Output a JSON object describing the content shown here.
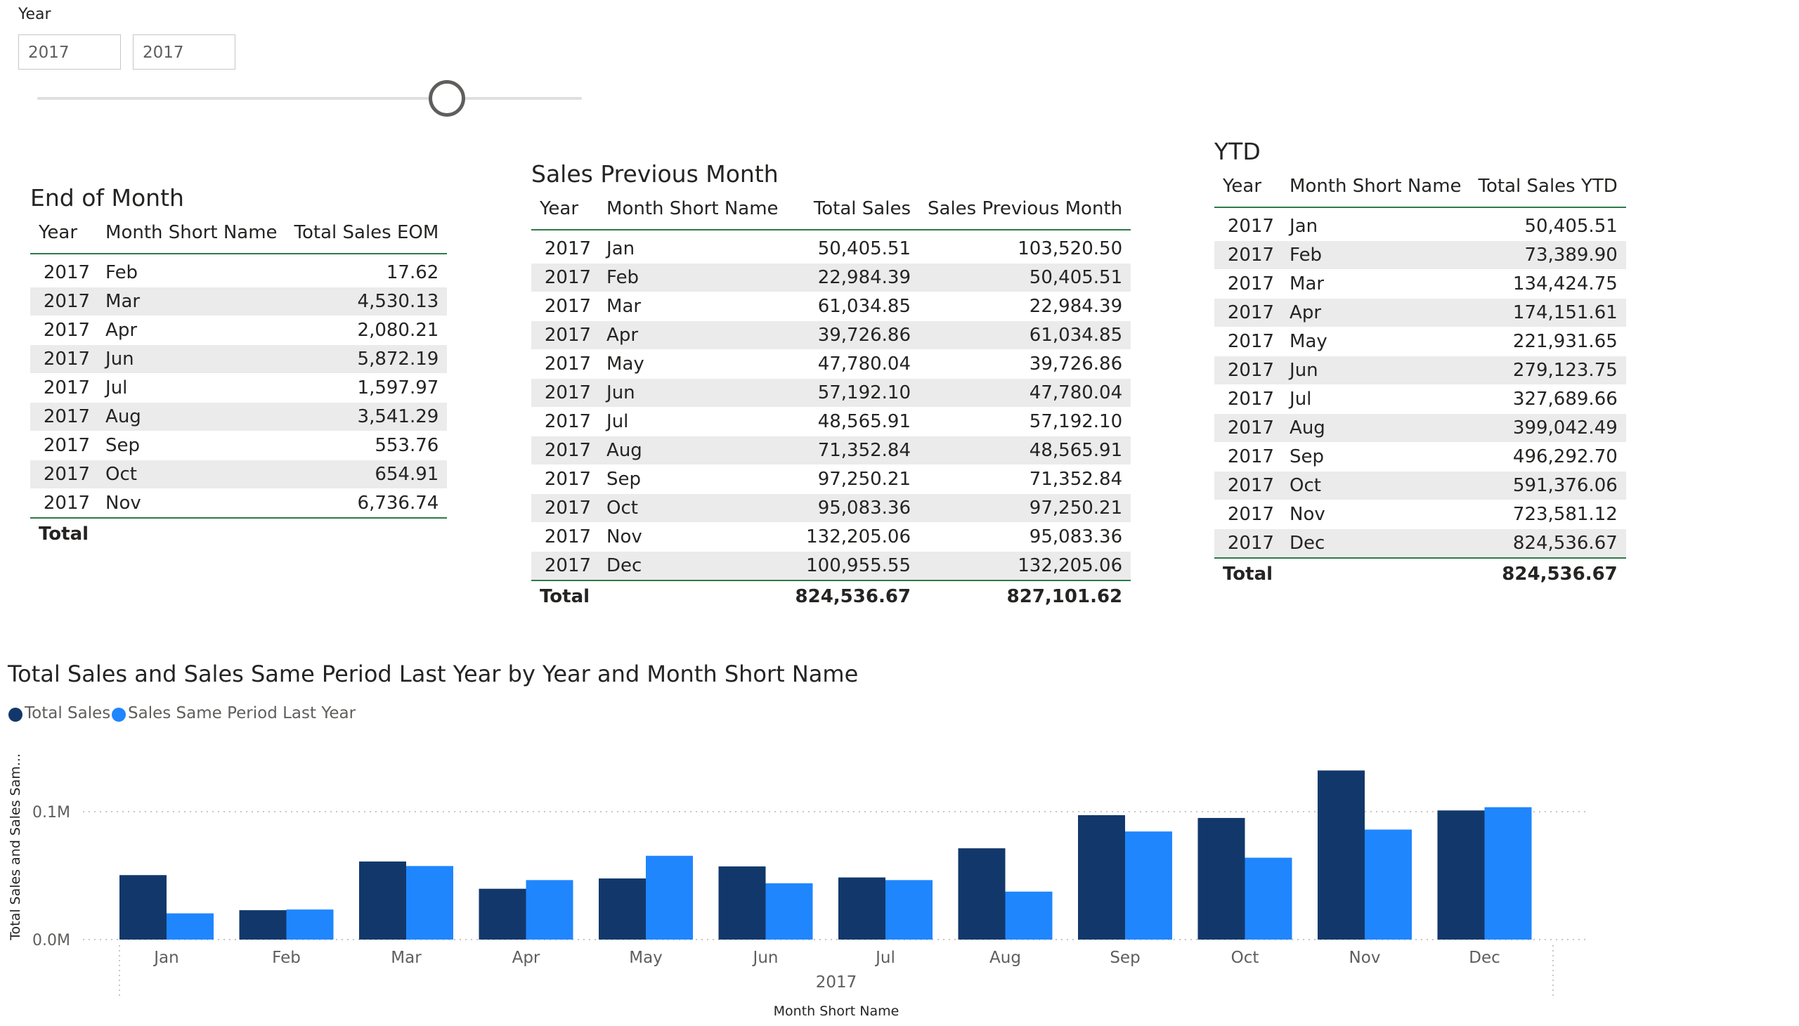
{
  "slicer": {
    "title": "Year",
    "from_value": "2017",
    "to_value": "2017"
  },
  "eom_table": {
    "title": "End of Month",
    "headers": [
      "Year",
      "Month Short Name",
      "Total Sales EOM"
    ],
    "rows": [
      [
        "2017",
        "Feb",
        "17.62"
      ],
      [
        "2017",
        "Mar",
        "4,530.13"
      ],
      [
        "2017",
        "Apr",
        "2,080.21"
      ],
      [
        "2017",
        "Jun",
        "5,872.19"
      ],
      [
        "2017",
        "Jul",
        "1,597.97"
      ],
      [
        "2017",
        "Aug",
        "3,541.29"
      ],
      [
        "2017",
        "Sep",
        "553.76"
      ],
      [
        "2017",
        "Oct",
        "654.91"
      ],
      [
        "2017",
        "Nov",
        "6,736.74"
      ]
    ],
    "total_label": "Total",
    "total_value": ""
  },
  "prev_table": {
    "title": "Sales Previous Month",
    "headers": [
      "Year",
      "Month Short Name",
      "Total Sales",
      "Sales Previous Month"
    ],
    "rows": [
      [
        "2017",
        "Jan",
        "50,405.51",
        "103,520.50"
      ],
      [
        "2017",
        "Feb",
        "22,984.39",
        "50,405.51"
      ],
      [
        "2017",
        "Mar",
        "61,034.85",
        "22,984.39"
      ],
      [
        "2017",
        "Apr",
        "39,726.86",
        "61,034.85"
      ],
      [
        "2017",
        "May",
        "47,780.04",
        "39,726.86"
      ],
      [
        "2017",
        "Jun",
        "57,192.10",
        "47,780.04"
      ],
      [
        "2017",
        "Jul",
        "48,565.91",
        "57,192.10"
      ],
      [
        "2017",
        "Aug",
        "71,352.84",
        "48,565.91"
      ],
      [
        "2017",
        "Sep",
        "97,250.21",
        "71,352.84"
      ],
      [
        "2017",
        "Oct",
        "95,083.36",
        "97,250.21"
      ],
      [
        "2017",
        "Nov",
        "132,205.06",
        "95,083.36"
      ],
      [
        "2017",
        "Dec",
        "100,955.55",
        "132,205.06"
      ]
    ],
    "total_label": "Total",
    "total_sales": "824,536.67",
    "total_prev": "827,101.62"
  },
  "ytd_table": {
    "title": "YTD",
    "headers": [
      "Year",
      "Month Short Name",
      "Total Sales YTD"
    ],
    "rows": [
      [
        "2017",
        "Jan",
        "50,405.51"
      ],
      [
        "2017",
        "Feb",
        "73,389.90"
      ],
      [
        "2017",
        "Mar",
        "134,424.75"
      ],
      [
        "2017",
        "Apr",
        "174,151.61"
      ],
      [
        "2017",
        "May",
        "221,931.65"
      ],
      [
        "2017",
        "Jun",
        "279,123.75"
      ],
      [
        "2017",
        "Jul",
        "327,689.66"
      ],
      [
        "2017",
        "Aug",
        "399,042.49"
      ],
      [
        "2017",
        "Sep",
        "496,292.70"
      ],
      [
        "2017",
        "Oct",
        "591,376.06"
      ],
      [
        "2017",
        "Nov",
        "723,581.12"
      ],
      [
        "2017",
        "Dec",
        "824,536.67"
      ]
    ],
    "total_label": "Total",
    "total_value": "824,536.67"
  },
  "chart_data": {
    "type": "bar",
    "title": "Total Sales and Sales Same Period Last Year by Year and Month Short Name",
    "categories": [
      "Jan",
      "Feb",
      "Mar",
      "Apr",
      "May",
      "Jun",
      "Jul",
      "Aug",
      "Sep",
      "Oct",
      "Nov",
      "Dec"
    ],
    "group_label": "2017",
    "series": [
      {
        "name": "Total Sales",
        "color": "#12386b",
        "values": [
          50405.51,
          22984.39,
          61034.85,
          39726.86,
          47780.04,
          57192.1,
          48565.91,
          71352.84,
          97250.21,
          95083.36,
          132205.06,
          100955.55
        ]
      },
      {
        "name": "Sales Same Period Last Year",
        "color": "#1f86fe",
        "values": [
          20500,
          23500,
          57500,
          46500,
          65500,
          44000,
          46500,
          37500,
          84500,
          64000,
          86000,
          103500
        ]
      }
    ],
    "xlabel": "Month Short Name",
    "ylabel": "Total Sales and Sales Sam...",
    "y_ticks": [
      "0.0M",
      "0.1M"
    ],
    "ylim": [
      0,
      135000
    ],
    "grid": true,
    "legend_position": "top-left"
  }
}
